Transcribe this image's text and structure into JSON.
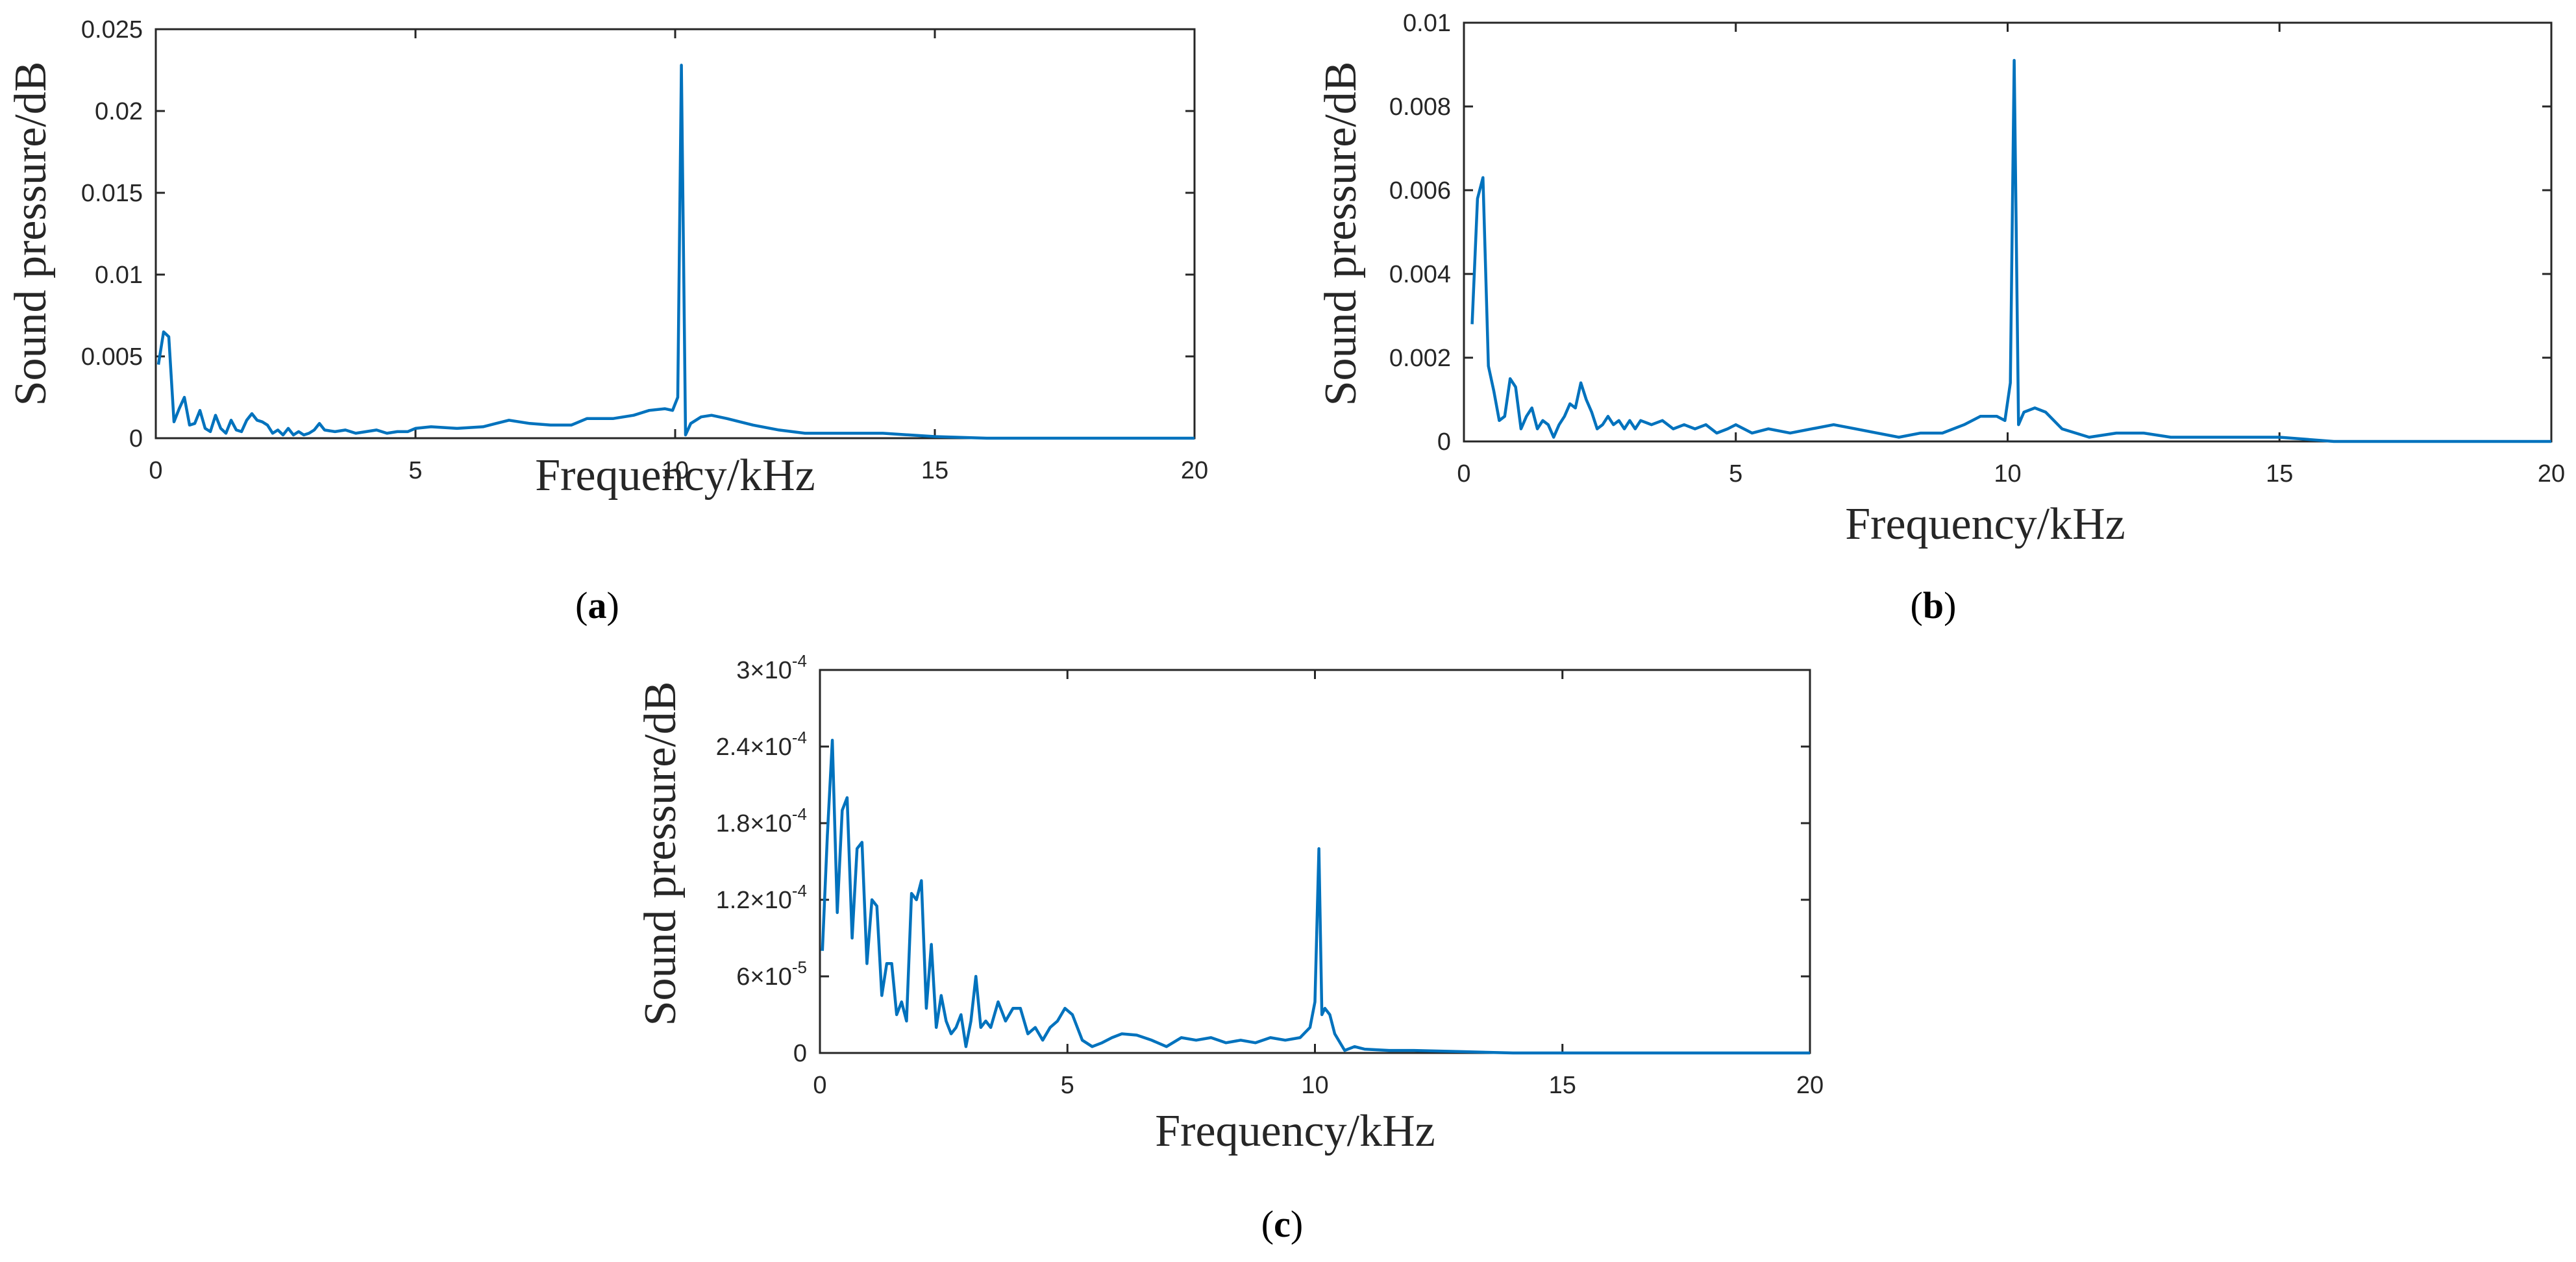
{
  "line_color": "#0072BD",
  "chart_data": [
    {
      "id": "a",
      "type": "line",
      "panel_label": "a",
      "xlabel": "Frequency/kHz",
      "ylabel": "Sound pressure/dB",
      "xlim": [
        0,
        20
      ],
      "ylim": [
        0,
        0.025
      ],
      "xticks": [
        0,
        5,
        10,
        15,
        20
      ],
      "xtick_labels": [
        "0",
        "5",
        "10",
        "15",
        "20"
      ],
      "yticks": [
        0,
        0.005,
        0.01,
        0.015,
        0.02,
        0.025
      ],
      "ytick_labels": [
        "0",
        "0.005",
        "0.01",
        "0.015",
        "0.02",
        "0.025"
      ],
      "series": [
        {
          "name": "a",
          "x": [
            0.05,
            0.15,
            0.25,
            0.35,
            0.45,
            0.55,
            0.65,
            0.75,
            0.85,
            0.95,
            1.05,
            1.15,
            1.25,
            1.35,
            1.45,
            1.55,
            1.65,
            1.75,
            1.85,
            1.95,
            2.05,
            2.15,
            2.25,
            2.35,
            2.45,
            2.55,
            2.65,
            2.75,
            2.85,
            2.95,
            3.05,
            3.15,
            3.25,
            3.45,
            3.65,
            3.85,
            4.05,
            4.25,
            4.45,
            4.65,
            4.85,
            5.0,
            5.3,
            5.8,
            6.3,
            6.8,
            7.2,
            7.6,
            8.0,
            8.3,
            8.8,
            9.2,
            9.5,
            9.8,
            9.95,
            10.05,
            10.12,
            10.2,
            10.3,
            10.5,
            10.7,
            11.0,
            11.5,
            12.0,
            12.5,
            13.0,
            14.0,
            15.0,
            16.0,
            18.0,
            20.0
          ],
          "y": [
            0.0045,
            0.0065,
            0.0062,
            0.001,
            0.0018,
            0.0025,
            0.0008,
            0.0009,
            0.0017,
            0.0006,
            0.0004,
            0.0014,
            0.0006,
            0.0003,
            0.0011,
            0.0005,
            0.0004,
            0.0011,
            0.0015,
            0.0011,
            0.001,
            0.0008,
            0.0003,
            0.0005,
            0.0002,
            0.0006,
            0.0002,
            0.0004,
            0.0002,
            0.0003,
            0.0005,
            0.0009,
            0.0005,
            0.0004,
            0.0005,
            0.0003,
            0.0004,
            0.0005,
            0.0003,
            0.0004,
            0.0004,
            0.0006,
            0.0007,
            0.0006,
            0.0007,
            0.0011,
            0.0009,
            0.0008,
            0.0008,
            0.0012,
            0.0012,
            0.0014,
            0.0017,
            0.0018,
            0.0017,
            0.0025,
            0.0228,
            0.0002,
            0.0009,
            0.0013,
            0.0014,
            0.0012,
            0.0008,
            0.0005,
            0.0003,
            0.0003,
            0.0003,
            0.0001,
            0.0,
            0.0,
            0.0
          ]
        }
      ]
    },
    {
      "id": "b",
      "type": "line",
      "panel_label": "b",
      "xlabel": "Frequency/kHz",
      "ylabel": "Sound pressure/dB",
      "xlim": [
        0,
        20
      ],
      "ylim": [
        0,
        0.01
      ],
      "xticks": [
        0,
        5,
        10,
        15,
        20
      ],
      "xtick_labels": [
        "0",
        "5",
        "10",
        "15",
        "20"
      ],
      "yticks": [
        0,
        0.002,
        0.004,
        0.006,
        0.008,
        0.01
      ],
      "ytick_labels": [
        "0",
        "0.002",
        "0.004",
        "0.006",
        "0.008",
        "0.01"
      ],
      "series": [
        {
          "name": "b",
          "x": [
            0.15,
            0.25,
            0.35,
            0.45,
            0.55,
            0.65,
            0.75,
            0.85,
            0.95,
            1.05,
            1.15,
            1.25,
            1.35,
            1.45,
            1.55,
            1.65,
            1.75,
            1.85,
            1.95,
            2.05,
            2.15,
            2.25,
            2.35,
            2.45,
            2.55,
            2.65,
            2.75,
            2.85,
            2.95,
            3.05,
            3.15,
            3.25,
            3.45,
            3.65,
            3.85,
            4.05,
            4.25,
            4.45,
            4.65,
            4.85,
            5.0,
            5.3,
            5.6,
            6.0,
            6.4,
            6.8,
            7.2,
            7.6,
            8.0,
            8.4,
            8.8,
            9.2,
            9.5,
            9.8,
            9.95,
            10.05,
            10.12,
            10.2,
            10.3,
            10.5,
            10.7,
            11.0,
            11.5,
            12.0,
            12.5,
            13.0,
            14.0,
            15.0,
            16.0,
            18.0,
            20.0
          ],
          "y": [
            0.0028,
            0.0058,
            0.0063,
            0.0018,
            0.0012,
            0.0005,
            0.0006,
            0.0015,
            0.0013,
            0.0003,
            0.0006,
            0.0008,
            0.0003,
            0.0005,
            0.0004,
            0.0001,
            0.0004,
            0.0006,
            0.0009,
            0.0008,
            0.0014,
            0.001,
            0.0007,
            0.0003,
            0.0004,
            0.0006,
            0.0004,
            0.0005,
            0.0003,
            0.0005,
            0.0003,
            0.0005,
            0.0004,
            0.0005,
            0.0003,
            0.0004,
            0.0003,
            0.0004,
            0.0002,
            0.0003,
            0.0004,
            0.0002,
            0.0003,
            0.0002,
            0.0003,
            0.0004,
            0.0003,
            0.0002,
            0.0001,
            0.0002,
            0.0002,
            0.0004,
            0.0006,
            0.0006,
            0.0005,
            0.0014,
            0.0091,
            0.0004,
            0.0007,
            0.0008,
            0.0007,
            0.0003,
            0.0001,
            0.0002,
            0.0002,
            0.0001,
            0.0001,
            0.0001,
            0.0,
            0.0,
            0.0
          ]
        }
      ]
    },
    {
      "id": "c",
      "type": "line",
      "panel_label": "c",
      "xlabel": "Frequency/kHz",
      "ylabel": "Sound pressure/dB",
      "xlim": [
        0,
        20
      ],
      "ylim": [
        0,
        0.0003
      ],
      "xticks": [
        0,
        5,
        10,
        15,
        20
      ],
      "xtick_labels": [
        "0",
        "5",
        "10",
        "15",
        "20"
      ],
      "yticks": [
        0,
        6e-05,
        0.00012,
        0.00018,
        0.00024,
        0.0003
      ],
      "ytick_mantissas": [
        "0",
        "6×10",
        "1.2×10",
        "1.8×10",
        "2.4×10",
        "3×10"
      ],
      "ytick_exponents": [
        "",
        "-5",
        "-4",
        "-4",
        "-4",
        "-4"
      ],
      "series": [
        {
          "name": "c",
          "x": [
            0.05,
            0.15,
            0.25,
            0.35,
            0.45,
            0.55,
            0.65,
            0.75,
            0.85,
            0.95,
            1.05,
            1.15,
            1.25,
            1.35,
            1.45,
            1.55,
            1.65,
            1.75,
            1.85,
            1.95,
            2.05,
            2.15,
            2.25,
            2.35,
            2.45,
            2.55,
            2.65,
            2.75,
            2.85,
            2.95,
            3.05,
            3.15,
            3.25,
            3.35,
            3.45,
            3.6,
            3.75,
            3.9,
            4.05,
            4.2,
            4.35,
            4.5,
            4.65,
            4.8,
            4.95,
            5.1,
            5.3,
            5.5,
            5.7,
            5.9,
            6.1,
            6.4,
            6.7,
            7.0,
            7.3,
            7.6,
            7.9,
            8.2,
            8.5,
            8.8,
            9.1,
            9.4,
            9.7,
            9.9,
            10.0,
            10.08,
            10.14,
            10.2,
            10.3,
            10.4,
            10.6,
            10.8,
            11.0,
            11.5,
            12.0,
            13.0,
            14.0,
            15.0,
            16.0,
            18.0,
            20.0
          ],
          "y": [
            8e-05,
            0.00017,
            0.000245,
            0.00011,
            0.00019,
            0.0002,
            9e-05,
            0.00016,
            0.000165,
            7e-05,
            0.00012,
            0.000115,
            4.5e-05,
            7e-05,
            7e-05,
            3e-05,
            4e-05,
            2.5e-05,
            0.000125,
            0.00012,
            0.000135,
            3.5e-05,
            8.5e-05,
            2e-05,
            4.5e-05,
            2.5e-05,
            1.5e-05,
            2e-05,
            3e-05,
            5e-06,
            2.5e-05,
            6e-05,
            2e-05,
            2.5e-05,
            2e-05,
            4e-05,
            2.5e-05,
            3.5e-05,
            3.5e-05,
            1.5e-05,
            2e-05,
            1e-05,
            2e-05,
            2.5e-05,
            3.5e-05,
            3e-05,
            1e-05,
            5e-06,
            8e-06,
            1.2e-05,
            1.5e-05,
            1.4e-05,
            1e-05,
            5e-06,
            1.2e-05,
            1e-05,
            1.2e-05,
            8e-06,
            1e-05,
            8e-06,
            1.2e-05,
            1e-05,
            1.2e-05,
            2e-05,
            4e-05,
            0.00016,
            3e-05,
            3.5e-05,
            3e-05,
            1.5e-05,
            2e-06,
            5e-06,
            3e-06,
            2e-06,
            2e-06,
            1e-06,
            0.0,
            0.0,
            0.0,
            0.0,
            0.0
          ]
        }
      ]
    }
  ]
}
